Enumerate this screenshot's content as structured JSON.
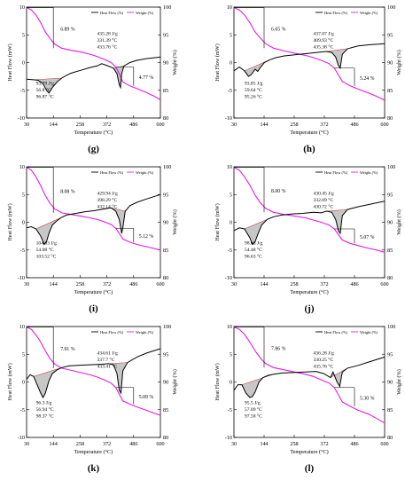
{
  "figure": {
    "xlabel": "Temperature (°C)",
    "ylabel_left": "Heat Flow (mW)",
    "ylabel_right": "Weight (%)",
    "legend_heat": "Heat Flow (%)",
    "legend_weight": "Weight (%)",
    "colors": {
      "heat_flow": "#000000",
      "weight": "#e619e6",
      "fill": "#999999",
      "baseline": "#c04040"
    }
  },
  "chart_data": [
    {
      "type": "line",
      "panel": "(g)",
      "xlim": [
        30,
        600
      ],
      "x_ticks": [
        "30",
        "144",
        "258",
        "372",
        "486",
        "600"
      ],
      "ylim_left": [
        -10,
        10
      ],
      "y_ticks_left": [
        "-10",
        "-5",
        "0",
        "5",
        "10"
      ],
      "ylim_right": [
        80,
        100
      ],
      "y_ticks_right": [
        "80",
        "85",
        "90",
        "95",
        "100"
      ],
      "annotations": {
        "mass_loss_1": "6.89 %",
        "mass_loss_2": "4.77 %",
        "peak1": [
          "93.79 J/g",
          "56.8 °C",
          "96.87 °C"
        ],
        "peak2": [
          "435.28 J/g",
          "331.39 °C",
          "433.76 °C"
        ]
      },
      "series": [
        {
          "name": "Heat Flow (%)",
          "x": [
            30,
            60,
            80,
            100,
            115,
            125,
            140,
            160,
            180,
            200,
            220,
            260,
            300,
            330,
            350,
            370,
            400,
            415,
            425,
            430,
            435,
            445,
            470,
            500,
            540,
            600
          ],
          "y": [
            -3.0,
            -3.1,
            -3.2,
            -3.8,
            -5.0,
            -5.5,
            -4.5,
            -3.5,
            -2.8,
            -2.3,
            -1.9,
            -1.4,
            -0.9,
            -0.6,
            -0.2,
            -0.5,
            -1.0,
            -2.0,
            -4.0,
            -4.5,
            -2.0,
            -0.6,
            0.0,
            0.4,
            0.7,
            1.0
          ]
        },
        {
          "name": "Weight (%)",
          "x": [
            30,
            50,
            70,
            90,
            110,
            130,
            150,
            180,
            220,
            260,
            300,
            330,
            360,
            390,
            410,
            425,
            440,
            470,
            500,
            540,
            570,
            600
          ],
          "y": [
            99.9,
            99.5,
            98.6,
            97.2,
            95.5,
            94.3,
            93.3,
            92.6,
            92.2,
            91.9,
            91.5,
            91.1,
            90.6,
            90.0,
            89.2,
            88.0,
            86.5,
            85.8,
            85.3,
            84.6,
            84.0,
            83.3
          ]
        }
      ]
    },
    {
      "type": "line",
      "panel": "(h)",
      "xlim": [
        30,
        600
      ],
      "x_ticks": [
        "30",
        "144",
        "258",
        "372",
        "486",
        "600"
      ],
      "ylim_left": [
        -10,
        10
      ],
      "y_ticks_left": [
        "-10",
        "-5",
        "0",
        "5",
        "10"
      ],
      "ylim_right": [
        80,
        100
      ],
      "y_ticks_right": [
        "80",
        "85",
        "90",
        "95",
        "100"
      ],
      "annotations": {
        "mass_loss_1": "6.65 %",
        "mass_loss_2": "5.24 %",
        "peak1": [
          "93.85 J/g",
          "59.64 °C",
          "95.26 °C"
        ],
        "peak2": [
          "437.07 J/g",
          "409.93 °C",
          "435.38 °C"
        ]
      },
      "series": [
        {
          "name": "Heat Flow (%)",
          "x": [
            30,
            50,
            70,
            85,
            95,
            110,
            120,
            130,
            145,
            165,
            190,
            220,
            260,
            300,
            340,
            380,
            400,
            415,
            425,
            432,
            440,
            460,
            500,
            540,
            600
          ],
          "y": [
            -1.5,
            -0.8,
            -1.5,
            -2.5,
            -2.2,
            -1.2,
            -1.6,
            -0.9,
            0.0,
            0.5,
            0.9,
            1.2,
            1.4,
            1.6,
            1.8,
            2.0,
            1.8,
            1.0,
            -0.5,
            -1.0,
            1.5,
            2.5,
            3.0,
            3.2,
            3.4
          ]
        },
        {
          "name": "Weight (%)",
          "x": [
            30,
            50,
            70,
            90,
            110,
            130,
            150,
            180,
            220,
            260,
            300,
            330,
            360,
            390,
            410,
            425,
            440,
            470,
            500,
            540,
            570,
            600
          ],
          "y": [
            99.9,
            99.5,
            98.6,
            97.2,
            95.5,
            94.4,
            93.4,
            92.6,
            92.1,
            91.7,
            91.3,
            90.9,
            90.4,
            89.8,
            89.0,
            87.8,
            86.6,
            85.8,
            85.2,
            84.5,
            83.9,
            83.2
          ]
        }
      ]
    },
    {
      "type": "line",
      "panel": "(i)",
      "xlim": [
        30,
        600
      ],
      "x_ticks": [
        "30",
        "144",
        "258",
        "372",
        "486",
        "600"
      ],
      "ylim_left": [
        -10,
        10
      ],
      "y_ticks_left": [
        "-10",
        "-5",
        "0",
        "5",
        "10"
      ],
      "ylim_right": [
        80,
        100
      ],
      "y_ticks_right": [
        "80",
        "85",
        "90",
        "95",
        "100"
      ],
      "annotations": {
        "mass_loss_1": "8.08 %",
        "mass_loss_2": "5.12 %",
        "peak1": [
          "104.63 J/g",
          "54.08 °C",
          "103.52 °C"
        ],
        "peak2": [
          "429.94 J/g",
          "398.29 °C",
          "432.14 °C"
        ]
      },
      "series": [
        {
          "name": "Heat Flow (%)",
          "x": [
            30,
            50,
            70,
            90,
            105,
            115,
            125,
            140,
            160,
            180,
            200,
            240,
            280,
            320,
            360,
            390,
            410,
            425,
            435,
            440,
            450,
            470,
            500,
            540,
            600
          ],
          "y": [
            -1.0,
            -0.8,
            -1.2,
            -2.5,
            -4.0,
            -3.5,
            -2.0,
            -0.5,
            0.3,
            0.9,
            1.3,
            1.6,
            1.9,
            2.1,
            2.4,
            2.6,
            2.0,
            0.5,
            -2.0,
            -1.0,
            2.0,
            3.0,
            3.6,
            4.2,
            5.0
          ]
        },
        {
          "name": "Weight (%)",
          "x": [
            30,
            50,
            70,
            90,
            110,
            130,
            150,
            180,
            220,
            260,
            300,
            330,
            360,
            390,
            410,
            425,
            440,
            470,
            500,
            540,
            570,
            600
          ],
          "y": [
            99.9,
            99.4,
            98.2,
            96.6,
            94.8,
            93.4,
            92.4,
            91.7,
            91.4,
            91.1,
            90.8,
            90.5,
            90.1,
            89.6,
            88.9,
            88.0,
            87.0,
            86.4,
            86.0,
            85.6,
            85.3,
            85.0
          ]
        }
      ]
    },
    {
      "type": "line",
      "panel": "(j)",
      "xlim": [
        30,
        600
      ],
      "x_ticks": [
        "30",
        "144",
        "258",
        "372",
        "486",
        "600"
      ],
      "ylim_left": [
        -10,
        10
      ],
      "y_ticks_left": [
        "-10",
        "-5",
        "0",
        "5",
        "10"
      ],
      "ylim_right": [
        80,
        100
      ],
      "y_ticks_right": [
        "80",
        "85",
        "90",
        "95",
        "100"
      ],
      "annotations": {
        "mass_loss_1": "8.00 %",
        "mass_loss_2": "5.07 %",
        "peak1": [
          "98.63 J/g",
          "54.48 °C",
          "96.63 °C"
        ],
        "peak2": [
          "430.45 J/g",
          "332.09 °C",
          "430.72 °C"
        ]
      },
      "series": [
        {
          "name": "Heat Flow (%)",
          "x": [
            30,
            50,
            70,
            90,
            100,
            110,
            120,
            135,
            155,
            180,
            210,
            250,
            290,
            330,
            360,
            380,
            400,
            415,
            425,
            432,
            440,
            460,
            500,
            540,
            600
          ],
          "y": [
            -1.5,
            -1.0,
            -1.2,
            -2.8,
            -4.0,
            -3.5,
            -2.2,
            -0.5,
            0.5,
            1.0,
            1.3,
            1.5,
            1.6,
            1.8,
            1.7,
            2.0,
            1.8,
            0.5,
            -1.5,
            -2.0,
            1.2,
            2.3,
            2.8,
            3.2,
            3.8
          ]
        },
        {
          "name": "Weight (%)",
          "x": [
            30,
            50,
            70,
            90,
            110,
            130,
            150,
            180,
            220,
            260,
            300,
            330,
            360,
            390,
            410,
            425,
            440,
            470,
            500,
            540,
            570,
            600
          ],
          "y": [
            99.9,
            99.4,
            98.2,
            96.7,
            94.9,
            93.5,
            92.5,
            91.8,
            91.4,
            91.1,
            90.8,
            90.4,
            90.0,
            89.5,
            88.8,
            87.8,
            86.8,
            86.2,
            85.8,
            85.3,
            85.0,
            84.6
          ]
        }
      ]
    },
    {
      "type": "line",
      "panel": "(k)",
      "xlim": [
        30,
        600
      ],
      "x_ticks": [
        "30",
        "144",
        "258",
        "372",
        "486",
        "600"
      ],
      "ylim_left": [
        -10,
        10
      ],
      "y_ticks_left": [
        "-10",
        "-5",
        "0",
        "5",
        "10"
      ],
      "ylim_right": [
        80,
        100
      ],
      "y_ticks_right": [
        "80",
        "85",
        "90",
        "95",
        "100"
      ],
      "annotations": {
        "mass_loss_1": "7.91 %",
        "mass_loss_2": "5.09 %",
        "peak1": [
          "96.3 J/g",
          "56.94 °C",
          "98.37 °C"
        ],
        "peak2": [
          "434.61 J/g",
          "337.7 °C",
          "433.41 °C"
        ]
      },
      "series": [
        {
          "name": "Heat Flow (%)",
          "x": [
            30,
            45,
            60,
            75,
            90,
            100,
            110,
            125,
            140,
            160,
            180,
            210,
            250,
            300,
            350,
            380,
            400,
            415,
            425,
            432,
            440,
            460,
            500,
            540,
            600
          ],
          "y": [
            0.5,
            1.3,
            1.0,
            -0.5,
            -2.0,
            -2.8,
            -2.0,
            0.2,
            1.5,
            2.2,
            2.6,
            2.9,
            3.0,
            3.1,
            3.2,
            3.3,
            3.1,
            1.5,
            -1.5,
            -2.0,
            2.0,
            3.5,
            4.5,
            5.2,
            6.0
          ]
        },
        {
          "name": "Weight (%)",
          "x": [
            30,
            50,
            70,
            90,
            110,
            130,
            150,
            180,
            220,
            260,
            300,
            330,
            360,
            390,
            410,
            425,
            440,
            470,
            500,
            540,
            570,
            600
          ],
          "y": [
            99.9,
            99.5,
            98.5,
            97.2,
            95.6,
            94.2,
            93.2,
            92.5,
            92.1,
            91.7,
            91.3,
            90.9,
            90.4,
            89.8,
            89.0,
            87.8,
            86.6,
            86.0,
            85.5,
            84.9,
            84.4,
            84.0
          ]
        }
      ]
    },
    {
      "type": "line",
      "panel": "(l)",
      "xlim": [
        30,
        600
      ],
      "x_ticks": [
        "30",
        "144",
        "258",
        "372",
        "486",
        "600"
      ],
      "ylim_left": [
        -10,
        10
      ],
      "y_ticks_left": [
        "-10",
        "-5",
        "0",
        "5",
        "10"
      ],
      "ylim_right": [
        80,
        100
      ],
      "y_ticks_right": [
        "80",
        "85",
        "90",
        "95",
        "100"
      ],
      "annotations": {
        "mass_loss_1": "7.86 %",
        "mass_loss_2": "5.30 %",
        "peak1": [
          "95.5 J/g",
          "57.09 °C",
          "97.58 °C"
        ],
        "peak2": [
          "436.28 J/g",
          "330.25 °C",
          "435.76 °C"
        ]
      },
      "series": [
        {
          "name": "Heat Flow (%)",
          "x": [
            30,
            45,
            60,
            75,
            90,
            100,
            110,
            125,
            140,
            160,
            180,
            210,
            250,
            300,
            340,
            370,
            395,
            405,
            420,
            430,
            440,
            460,
            500,
            540,
            600
          ],
          "y": [
            -1.5,
            -0.5,
            -0.5,
            -2.0,
            -2.8,
            -2.6,
            -1.8,
            0.0,
            0.8,
            1.2,
            1.4,
            1.6,
            1.7,
            1.8,
            1.9,
            1.5,
            0.8,
            1.8,
            0.0,
            -0.8,
            1.8,
            2.5,
            3.0,
            3.6,
            4.5
          ]
        },
        {
          "name": "Weight (%)",
          "x": [
            30,
            50,
            70,
            90,
            110,
            130,
            150,
            180,
            220,
            260,
            300,
            330,
            360,
            390,
            410,
            425,
            440,
            470,
            500,
            540,
            570,
            600
          ],
          "y": [
            99.9,
            99.5,
            98.6,
            97.2,
            95.6,
            94.3,
            93.3,
            92.6,
            92.2,
            91.8,
            91.4,
            91.0,
            90.4,
            89.8,
            89.0,
            87.7,
            86.4,
            85.6,
            84.9,
            84.2,
            83.4,
            82.6
          ]
        }
      ]
    }
  ]
}
